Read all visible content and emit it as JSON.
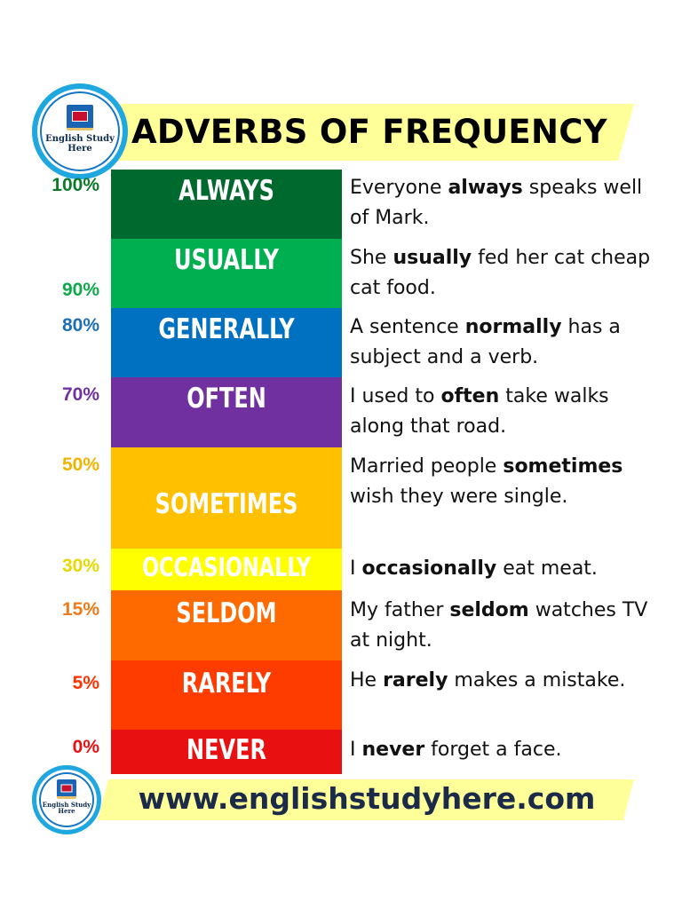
{
  "title": "ADVERBS OF FREQUENCY",
  "logo": {
    "line1": "English Study",
    "line2": "Here"
  },
  "rows": [
    {
      "percent": "100%",
      "adverb": "ALWAYS",
      "color": "#006a2e",
      "percent_color": "#0c7a2a",
      "example": [
        {
          "t": "Everyone "
        },
        {
          "t": "always",
          "b": true
        },
        {
          "t": " speaks well of Mark."
        }
      ]
    },
    {
      "percent": "90%",
      "adverb": "USUALLY",
      "color": "#00b050",
      "percent_color": "#0fa84a",
      "example": [
        {
          "t": "She "
        },
        {
          "t": "usually",
          "b": true
        },
        {
          "t": " fed her cat cheap cat food."
        }
      ]
    },
    {
      "percent": "80%",
      "adverb": "GENERALLY",
      "color": "#0070c0",
      "percent_color": "#1f6fb8",
      "example": [
        {
          "t": "A sentence "
        },
        {
          "t": "normally",
          "b": true
        },
        {
          "t": " has a subject and a verb."
        }
      ]
    },
    {
      "percent": "70%",
      "adverb": "OFTEN",
      "color": "#7030a0",
      "percent_color": "#7030a0",
      "example": [
        {
          "t": "I used to "
        },
        {
          "t": "often",
          "b": true
        },
        {
          "t": " take walks along that road."
        }
      ]
    },
    {
      "percent": "50%",
      "adverb": "SOMETIMES",
      "color": "#ffc000",
      "percent_color": "#f0b400",
      "example": [
        {
          "t": "Married people "
        },
        {
          "t": "sometimes",
          "b": true
        },
        {
          "t": " wish they were single."
        }
      ]
    },
    {
      "percent": "30%",
      "adverb": "OCCASIONALLY",
      "color": "#ffff00",
      "percent_color": "#e6d800",
      "example": [
        {
          "t": "I "
        },
        {
          "t": "occasionally",
          "b": true
        },
        {
          "t": " eat meat."
        }
      ]
    },
    {
      "percent": "15%",
      "adverb": "SELDOM",
      "color": "#ff6a00",
      "percent_color": "#f07a1a",
      "example": [
        {
          "t": "My father "
        },
        {
          "t": "seldom",
          "b": true
        },
        {
          "t": " watches TV at night."
        }
      ]
    },
    {
      "percent": "5%",
      "adverb": "RARELY",
      "color": "#ff3c00",
      "percent_color": "#ff3300",
      "example": [
        {
          "t": "He "
        },
        {
          "t": "rarely",
          "b": true
        },
        {
          "t": " makes a mistake."
        }
      ]
    },
    {
      "percent": "0%",
      "adverb": "NEVER",
      "color": "#e81010",
      "percent_color": "#e81010",
      "example": [
        {
          "t": "I "
        },
        {
          "t": "never",
          "b": true
        },
        {
          "t": " forget a face."
        }
      ]
    }
  ],
  "footer_url": "www.englishstudyhere.com"
}
